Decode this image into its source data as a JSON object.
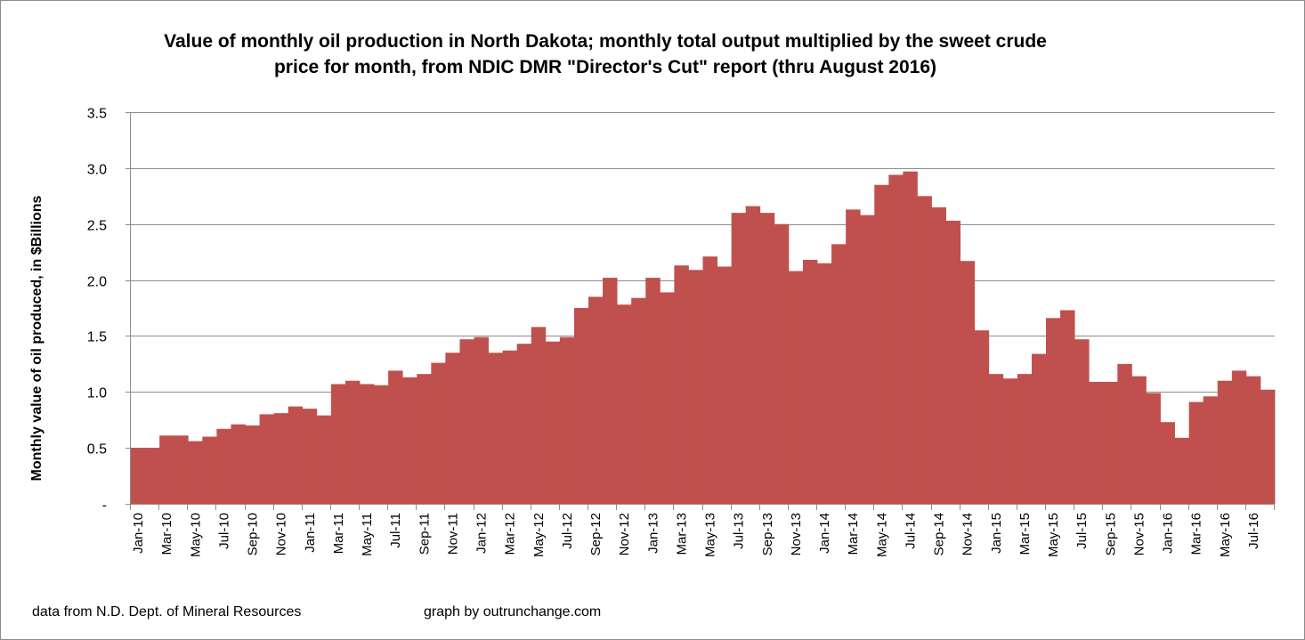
{
  "chart_data": {
    "type": "bar",
    "title_lines": [
      "Value of monthly oil production in North Dakota; monthly total output multiplied by the sweet crude",
      "price for month, from NDIC DMR \"Director's Cut\" report  (thru August 2016)"
    ],
    "xlabel": "",
    "ylabel": "Monthly value of oil produced, in $Billions",
    "ylim": [
      0,
      3.5
    ],
    "yticks": [
      0,
      0.5,
      1.0,
      1.5,
      2.0,
      2.5,
      3.0,
      3.5
    ],
    "ytick_labels": [
      "-",
      "0.5",
      "1.0",
      "1.5",
      "2.0",
      "2.5",
      "3.0",
      "3.5"
    ],
    "grid": true,
    "bar_color": "#c0504d",
    "categories": [
      "Jan-10",
      "Feb-10",
      "Mar-10",
      "Apr-10",
      "May-10",
      "Jun-10",
      "Jul-10",
      "Aug-10",
      "Sep-10",
      "Oct-10",
      "Nov-10",
      "Dec-10",
      "Jan-11",
      "Feb-11",
      "Mar-11",
      "Apr-11",
      "May-11",
      "Jun-11",
      "Jul-11",
      "Aug-11",
      "Sep-11",
      "Oct-11",
      "Nov-11",
      "Dec-11",
      "Jan-12",
      "Feb-12",
      "Mar-12",
      "Apr-12",
      "May-12",
      "Jun-12",
      "Jul-12",
      "Aug-12",
      "Sep-12",
      "Oct-12",
      "Nov-12",
      "Dec-12",
      "Jan-13",
      "Feb-13",
      "Mar-13",
      "Apr-13",
      "May-13",
      "Jun-13",
      "Jul-13",
      "Aug-13",
      "Sep-13",
      "Oct-13",
      "Nov-13",
      "Dec-13",
      "Jan-14",
      "Feb-14",
      "Mar-14",
      "Apr-14",
      "May-14",
      "Jun-14",
      "Jul-14",
      "Aug-14",
      "Sep-14",
      "Oct-14",
      "Nov-14",
      "Dec-14",
      "Jan-15",
      "Feb-15",
      "Mar-15",
      "Apr-15",
      "May-15",
      "Jun-15",
      "Jul-15",
      "Aug-15",
      "Sep-15",
      "Oct-15",
      "Nov-15",
      "Dec-15",
      "Jan-16",
      "Feb-16",
      "Mar-16",
      "Apr-16",
      "May-16",
      "Jun-16",
      "Jul-16",
      "Aug-16"
    ],
    "values": [
      0.5,
      0.5,
      0.61,
      0.61,
      0.56,
      0.6,
      0.67,
      0.71,
      0.7,
      0.8,
      0.81,
      0.87,
      0.85,
      0.79,
      1.07,
      1.1,
      1.07,
      1.06,
      1.19,
      1.13,
      1.16,
      1.26,
      1.35,
      1.47,
      1.49,
      1.35,
      1.37,
      1.43,
      1.58,
      1.45,
      1.49,
      1.75,
      1.85,
      2.02,
      1.78,
      1.84,
      2.02,
      1.89,
      2.13,
      2.09,
      2.21,
      2.12,
      2.6,
      2.66,
      2.6,
      2.5,
      2.08,
      2.18,
      2.15,
      2.32,
      2.63,
      2.58,
      2.85,
      2.94,
      2.97,
      2.75,
      2.65,
      2.53,
      2.17,
      1.55,
      1.16,
      1.12,
      1.16,
      1.34,
      1.66,
      1.73,
      1.47,
      1.09,
      1.09,
      1.25,
      1.14,
      0.99,
      0.73,
      0.59,
      0.91,
      0.96,
      1.1,
      1.19,
      1.14,
      1.02
    ],
    "xtick_label_every": 2
  },
  "footer": {
    "source": "data from N.D. Dept. of Mineral Resources",
    "credit": "graph by outrunchange.com"
  }
}
